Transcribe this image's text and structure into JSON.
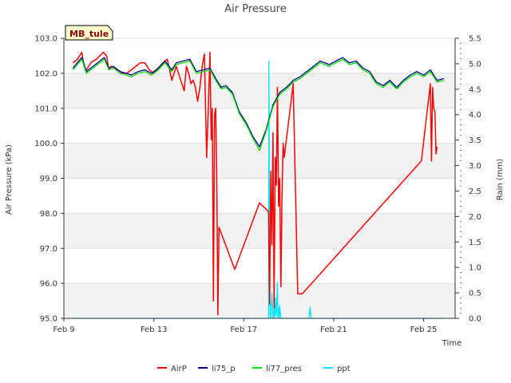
{
  "chart_data": {
    "type": "line",
    "title": "Air Pressure",
    "station_label": "MB_tule",
    "xlabel": "Time",
    "ylabel": "Air Pressure (kPa)",
    "y2label": "Rain (mm)",
    "xlim": [
      9,
      26.4
    ],
    "ylim": [
      95.0,
      103.0
    ],
    "y2lim": [
      0.0,
      5.5
    ],
    "x_ticks": [
      {
        "value": 9,
        "label": "Feb 9"
      },
      {
        "value": 13,
        "label": "Feb 13"
      },
      {
        "value": 17,
        "label": "Feb 17"
      },
      {
        "value": 21,
        "label": "Feb 21"
      },
      {
        "value": 25,
        "label": "Feb 25"
      }
    ],
    "y_ticks": [
      "95.0",
      "96.0",
      "97.0",
      "98.0",
      "99.0",
      "100.0",
      "101.0",
      "102.0",
      "103.0"
    ],
    "y2_ticks": [
      "0.0",
      "0.5",
      "1.0",
      "1.5",
      "2.0",
      "2.5",
      "3.0",
      "3.5",
      "4.0",
      "4.5",
      "5.0",
      "5.5"
    ],
    "series": [
      {
        "name": "AirP",
        "color": "#ff0000",
        "axis": "left",
        "x": [
          9.4,
          9.5,
          9.6,
          9.7,
          9.8,
          9.9,
          10.0,
          10.1,
          10.2,
          10.3,
          10.45,
          10.6,
          10.75,
          10.9,
          11.0,
          11.1,
          11.2,
          11.4,
          11.6,
          11.8,
          12.0,
          12.2,
          12.4,
          12.6,
          12.8,
          13.0,
          13.2,
          13.4,
          13.6,
          13.8,
          14.0,
          14.2,
          14.35,
          14.45,
          14.55,
          14.65,
          14.75,
          14.85,
          14.95,
          15.05,
          15.15,
          15.25,
          15.35,
          15.45,
          15.5,
          15.55,
          15.6,
          15.65,
          15.7,
          15.75,
          15.8,
          15.85,
          15.9,
          16.6,
          17.7,
          18.1,
          18.15,
          18.2,
          18.25,
          18.3,
          18.35,
          18.4,
          18.45,
          18.5,
          18.55,
          18.6,
          18.65,
          18.7,
          18.75,
          18.8,
          19.2,
          19.4,
          19.6,
          24.9,
          25.3,
          25.35,
          25.4,
          25.45,
          25.5,
          25.55,
          25.6
        ],
        "y": [
          102.3,
          102.35,
          102.4,
          102.5,
          102.6,
          102.2,
          102.1,
          102.2,
          102.3,
          102.35,
          102.4,
          102.5,
          102.6,
          102.5,
          102.1,
          102.2,
          102.15,
          102.1,
          102.0,
          102.0,
          102.1,
          102.2,
          102.3,
          102.3,
          102.1,
          102.0,
          102.15,
          102.3,
          102.4,
          101.8,
          102.2,
          101.8,
          101.5,
          102.2,
          102.0,
          101.7,
          101.8,
          101.6,
          101.2,
          101.6,
          102.2,
          102.55,
          99.6,
          101.5,
          102.6,
          100.1,
          101.0,
          95.5,
          100.8,
          101.0,
          99.0,
          95.1,
          97.6,
          96.4,
          98.3,
          98.05,
          95.4,
          99.2,
          97.1,
          100.3,
          95.3,
          99.6,
          98.8,
          101.6,
          98.2,
          99.0,
          95.9,
          98.5,
          100.0,
          99.6,
          101.7,
          95.7,
          95.7,
          99.5,
          101.7,
          99.5,
          101.6,
          101.0,
          100.9,
          99.7,
          99.9
        ]
      },
      {
        "name": "li75_p",
        "color": "#00008b",
        "axis": "left",
        "x": [
          9.4,
          9.6,
          9.8,
          10.0,
          10.2,
          10.5,
          10.8,
          11.0,
          11.2,
          11.5,
          11.8,
          12.0,
          12.3,
          12.6,
          12.9,
          13.2,
          13.5,
          13.8,
          14.0,
          14.3,
          14.6,
          14.9,
          15.2,
          15.5,
          15.8,
          16.0,
          16.2,
          16.5,
          16.8,
          17.1,
          17.4,
          17.7,
          18.0,
          18.3,
          18.6,
          18.9,
          19.2,
          19.5,
          19.8,
          20.1,
          20.4,
          20.8,
          21.1,
          21.4,
          21.7,
          22.0,
          22.3,
          22.6,
          22.9,
          23.2,
          23.5,
          23.8,
          24.1,
          24.4,
          24.7,
          25.0,
          25.3,
          25.6,
          25.9
        ],
        "y": [
          102.15,
          102.3,
          102.45,
          102.05,
          102.15,
          102.3,
          102.45,
          102.15,
          102.2,
          102.05,
          102.0,
          101.95,
          102.05,
          102.1,
          102.0,
          102.15,
          102.35,
          102.1,
          102.3,
          102.35,
          102.4,
          102.05,
          102.1,
          102.15,
          101.8,
          101.6,
          101.65,
          101.45,
          100.9,
          100.6,
          100.2,
          99.9,
          100.4,
          101.1,
          101.45,
          101.6,
          101.8,
          101.9,
          102.05,
          102.2,
          102.35,
          102.25,
          102.35,
          102.45,
          102.3,
          102.35,
          102.15,
          102.05,
          101.75,
          101.65,
          101.8,
          101.6,
          101.8,
          101.95,
          102.05,
          101.95,
          102.1,
          101.8,
          101.85
        ]
      },
      {
        "name": "li77_pres",
        "color": "#00e000",
        "axis": "left",
        "x": [
          9.4,
          9.6,
          9.8,
          10.0,
          10.2,
          10.5,
          10.8,
          11.0,
          11.2,
          11.5,
          11.8,
          12.0,
          12.3,
          12.6,
          12.9,
          13.2,
          13.5,
          13.8,
          14.0,
          14.3,
          14.6,
          14.9,
          15.2,
          15.5,
          15.8,
          16.0,
          16.2,
          16.5,
          16.8,
          17.1,
          17.4,
          17.7,
          18.0,
          18.3,
          18.6,
          18.9,
          19.2,
          19.5,
          19.8,
          20.1,
          20.4,
          20.8,
          21.1,
          21.4,
          21.7,
          22.0,
          22.3,
          22.6,
          22.9,
          23.2,
          23.5,
          23.8,
          24.1,
          24.4,
          24.7,
          25.0,
          25.3,
          25.6,
          25.9
        ],
        "y": [
          102.1,
          102.25,
          102.4,
          102.0,
          102.1,
          102.25,
          102.4,
          102.1,
          102.15,
          102.0,
          101.95,
          101.9,
          102.0,
          102.05,
          101.95,
          102.1,
          102.3,
          102.05,
          102.25,
          102.3,
          102.35,
          102.0,
          102.05,
          102.1,
          101.75,
          101.55,
          101.6,
          101.4,
          100.85,
          100.55,
          100.15,
          99.8,
          100.35,
          101.05,
          101.4,
          101.55,
          101.75,
          101.85,
          102.0,
          102.15,
          102.3,
          102.2,
          102.3,
          102.4,
          102.25,
          102.3,
          102.1,
          102.0,
          101.7,
          101.6,
          101.75,
          101.55,
          101.75,
          101.9,
          102.0,
          101.9,
          102.05,
          101.75,
          101.8
        ]
      },
      {
        "name": "ppt",
        "color": "#00e5ff",
        "axis": "right",
        "x": [
          9.4,
          18.0,
          18.1,
          18.12,
          18.15,
          18.18,
          18.2,
          18.25,
          18.3,
          18.35,
          18.38,
          18.4,
          18.45,
          18.5,
          18.52,
          18.55,
          18.58,
          18.6,
          18.65,
          18.7,
          18.8,
          19.0,
          19.9,
          19.95,
          20.0,
          20.05,
          20.1,
          21.0,
          22.0,
          23.0,
          24.0,
          25.0,
          25.9
        ],
        "y": [
          0.0,
          0.0,
          0.0,
          5.05,
          0.6,
          0.0,
          0.0,
          0.5,
          0.0,
          0.2,
          0.0,
          0.4,
          0.05,
          0.7,
          0.0,
          0.2,
          0.0,
          0.25,
          0.0,
          0.0,
          0.0,
          0.0,
          0.0,
          0.22,
          0.0,
          0.0,
          0.0,
          0.0,
          0.0,
          0.0,
          0.0,
          0.0,
          0.0
        ]
      }
    ],
    "legend": [
      "AirP",
      "li75_p",
      "li77_pres",
      "ppt"
    ],
    "legend_position": "bottom-center",
    "grid": true
  }
}
